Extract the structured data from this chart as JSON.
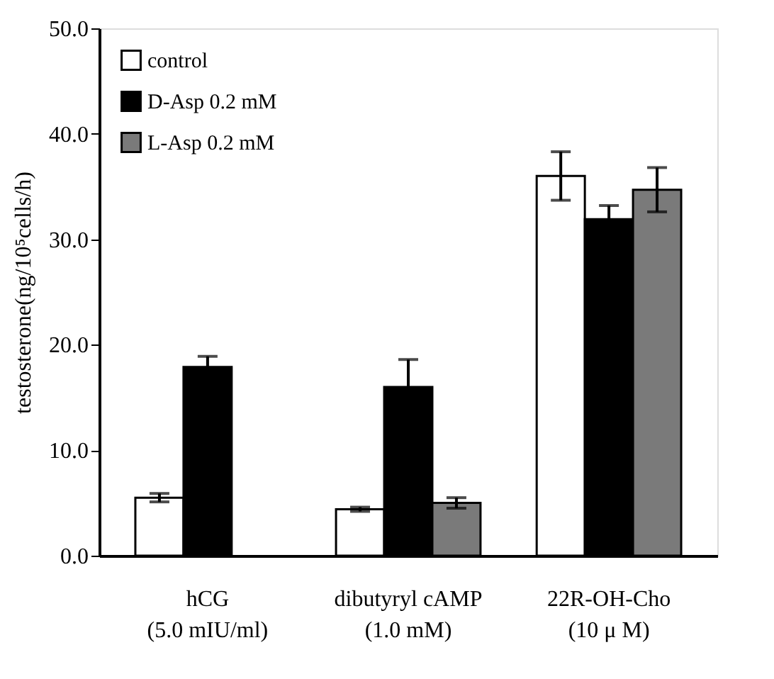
{
  "chart_data": {
    "type": "bar",
    "ylabel": "testosterone(ng/10⁵cells/h)",
    "categories": [
      "hCG\n(5.0 mIU/ml)",
      "dibutyryl cAMP\n(1.0 mM)",
      "22R-OH-Cho\n(10 μ M)"
    ],
    "series": [
      {
        "name": "control",
        "color": "#ffffff",
        "values": [
          5.5,
          4.4,
          36.0
        ],
        "errors": [
          0.4,
          0.2,
          2.3
        ]
      },
      {
        "name": "D-Asp 0.2 mM",
        "color": "#000000",
        "values": [
          17.9,
          16.0,
          31.9
        ],
        "errors": [
          1.0,
          2.6,
          1.3
        ]
      },
      {
        "name": "L-Asp 0.2 mM",
        "color": "#7a7a7a",
        "values": [
          null,
          5.0,
          34.7
        ],
        "errors": [
          null,
          0.5,
          2.1
        ]
      }
    ],
    "ylim": [
      0,
      50
    ],
    "yticks": [
      {
        "value": 0,
        "label": "0.0"
      },
      {
        "value": 10,
        "label": "10.0"
      },
      {
        "value": 20,
        "label": "20.0"
      },
      {
        "value": 30,
        "label": "30.0"
      },
      {
        "value": 40,
        "label": "40.0"
      },
      {
        "value": 50,
        "label": "50.0"
      }
    ],
    "grid": false,
    "legend": "top left"
  }
}
